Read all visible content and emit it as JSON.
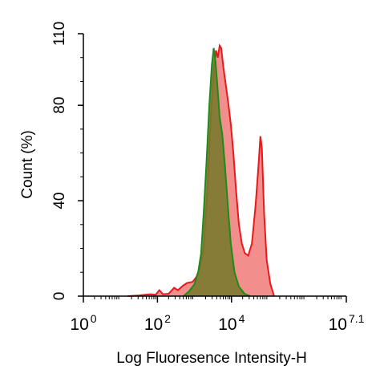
{
  "chart_data": {
    "type": "area",
    "xlabel": "Log Fluoresence Intensity-H",
    "ylabel": "Count  (%)",
    "x_scale": "log10",
    "xlim": [
      0,
      7.1
    ],
    "ylim": [
      0,
      110
    ],
    "y_ticks": [
      {
        "value": 0,
        "label": "0"
      },
      {
        "value": 40,
        "label": "40"
      },
      {
        "value": 80,
        "label": "80"
      },
      {
        "value": 110,
        "label": "110"
      }
    ],
    "x_ticks": [
      {
        "value": 0,
        "base": "10",
        "exp": "0"
      },
      {
        "value": 2,
        "base": "10",
        "exp": "2"
      },
      {
        "value": 4,
        "base": "10",
        "exp": "4"
      },
      {
        "value": 7.1,
        "base": "10",
        "exp": "7.1"
      }
    ],
    "grid": false,
    "series": [
      {
        "color": "#e8191c",
        "fill": "#f07a78",
        "points": [
          [
            1.2,
            0
          ],
          [
            1.5,
            0.3
          ],
          [
            1.8,
            0.8
          ],
          [
            1.95,
            0.6
          ],
          [
            2.05,
            2.5
          ],
          [
            2.15,
            0.8
          ],
          [
            2.3,
            1
          ],
          [
            2.45,
            3.5
          ],
          [
            2.55,
            2.5
          ],
          [
            2.7,
            4.5
          ],
          [
            2.8,
            5.5
          ],
          [
            2.95,
            6
          ],
          [
            3.05,
            8
          ],
          [
            3.15,
            12
          ],
          [
            3.25,
            20
          ],
          [
            3.35,
            45
          ],
          [
            3.45,
            78
          ],
          [
            3.53,
            96
          ],
          [
            3.58,
            103
          ],
          [
            3.63,
            100
          ],
          [
            3.68,
            105
          ],
          [
            3.72,
            104
          ],
          [
            3.78,
            96
          ],
          [
            3.85,
            88
          ],
          [
            3.92,
            80
          ],
          [
            3.98,
            72
          ],
          [
            4.05,
            60
          ],
          [
            4.12,
            45
          ],
          [
            4.2,
            30
          ],
          [
            4.28,
            22
          ],
          [
            4.36,
            18
          ],
          [
            4.45,
            17
          ],
          [
            4.55,
            22
          ],
          [
            4.65,
            38
          ],
          [
            4.73,
            55
          ],
          [
            4.78,
            67
          ],
          [
            4.82,
            62
          ],
          [
            4.88,
            35
          ],
          [
            4.95,
            15
          ],
          [
            5.05,
            5
          ],
          [
            5.15,
            0
          ]
        ]
      },
      {
        "color": "#1a8c1a",
        "fill": "#7a7a2e",
        "points": [
          [
            2.7,
            0
          ],
          [
            2.85,
            2
          ],
          [
            3.0,
            5
          ],
          [
            3.1,
            10
          ],
          [
            3.18,
            18
          ],
          [
            3.25,
            35
          ],
          [
            3.32,
            55
          ],
          [
            3.4,
            80
          ],
          [
            3.47,
            97
          ],
          [
            3.52,
            104
          ],
          [
            3.57,
            98
          ],
          [
            3.62,
            88
          ],
          [
            3.68,
            75
          ],
          [
            3.75,
            68
          ],
          [
            3.82,
            55
          ],
          [
            3.9,
            38
          ],
          [
            3.98,
            22
          ],
          [
            4.08,
            10
          ],
          [
            4.2,
            4
          ],
          [
            4.35,
            1
          ],
          [
            4.5,
            0
          ]
        ]
      }
    ]
  }
}
